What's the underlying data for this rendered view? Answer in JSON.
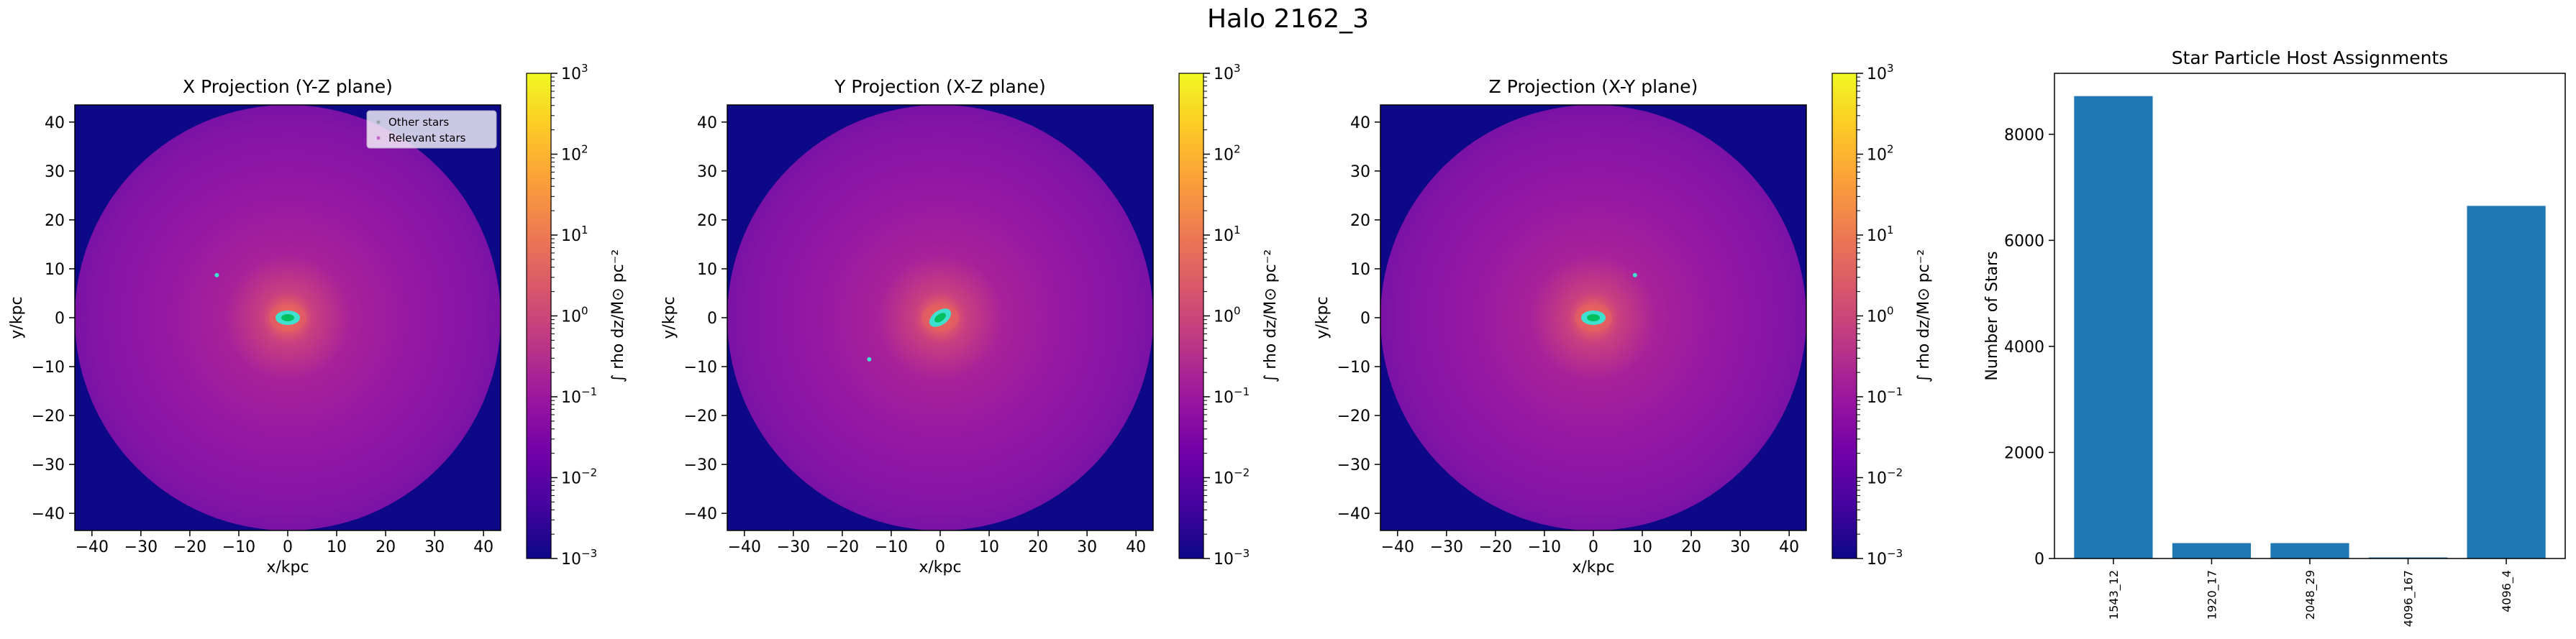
{
  "figure": {
    "suptitle": "Halo 2162_3"
  },
  "colors": {
    "background_outside": "#0d0887",
    "cmap": [
      "#0d0887",
      "#46039f",
      "#7201a8",
      "#9c179e",
      "#bd3786",
      "#d8576b",
      "#ed7953",
      "#fb9f3a",
      "#fdca26",
      "#f0f921"
    ],
    "relevant_stars": "#40e0d0",
    "dense_core": "#00c060",
    "bar": "#1f77b4"
  },
  "projections": [
    {
      "title": "X Projection (Y-Z plane)",
      "xlabel": "x/kpc",
      "ylabel": "y/kpc",
      "legend": [
        "Other stars",
        "Relevant stars"
      ],
      "satellite": [
        -14.5,
        8.7
      ],
      "core_tilt": 0
    },
    {
      "title": "Y Projection (X-Z plane)",
      "xlabel": "x/kpc",
      "ylabel": "y/kpc",
      "legend": [],
      "satellite": [
        -14.5,
        -8.5
      ],
      "core_tilt": -35
    },
    {
      "title": "Z Projection (X-Y plane)",
      "xlabel": "x/kpc",
      "ylabel": "y/kpc",
      "legend": [],
      "satellite": [
        8.5,
        8.7
      ],
      "core_tilt": 0
    }
  ],
  "projection_axes": {
    "xlim": [
      -43.5,
      43.5
    ],
    "ylim": [
      -43.5,
      43.5
    ],
    "ticks": [
      -40,
      -30,
      -20,
      -10,
      0,
      10,
      20,
      30,
      40
    ],
    "halo_radius_kpc": 43.5
  },
  "colorbar": {
    "label": "∫ rho dz/M⊙ pc⁻²",
    "scale": "log",
    "range": [
      0.001,
      1000
    ],
    "ticks": [
      {
        "base": "10",
        "exp": "3",
        "value": 1000
      },
      {
        "base": "10",
        "exp": "2",
        "value": 100
      },
      {
        "base": "10",
        "exp": "1",
        "value": 10
      },
      {
        "base": "10",
        "exp": "0",
        "value": 1
      },
      {
        "base": "10",
        "exp": "−1",
        "value": 0.1
      },
      {
        "base": "10",
        "exp": "−2",
        "value": 0.01
      },
      {
        "base": "10",
        "exp": "−3",
        "value": 0.001
      }
    ]
  },
  "chart_data": {
    "type": "bar",
    "title": "Star Particle Host Assignments",
    "xlabel": "",
    "ylabel": "Number of Stars",
    "categories": [
      "1543_12",
      "1920_17",
      "2048_29",
      "4096_167",
      "4096_4"
    ],
    "values": [
      8720,
      290,
      290,
      20,
      6650
    ],
    "ylim": [
      0,
      9150
    ],
    "yticks": [
      0,
      2000,
      4000,
      6000,
      8000
    ]
  }
}
